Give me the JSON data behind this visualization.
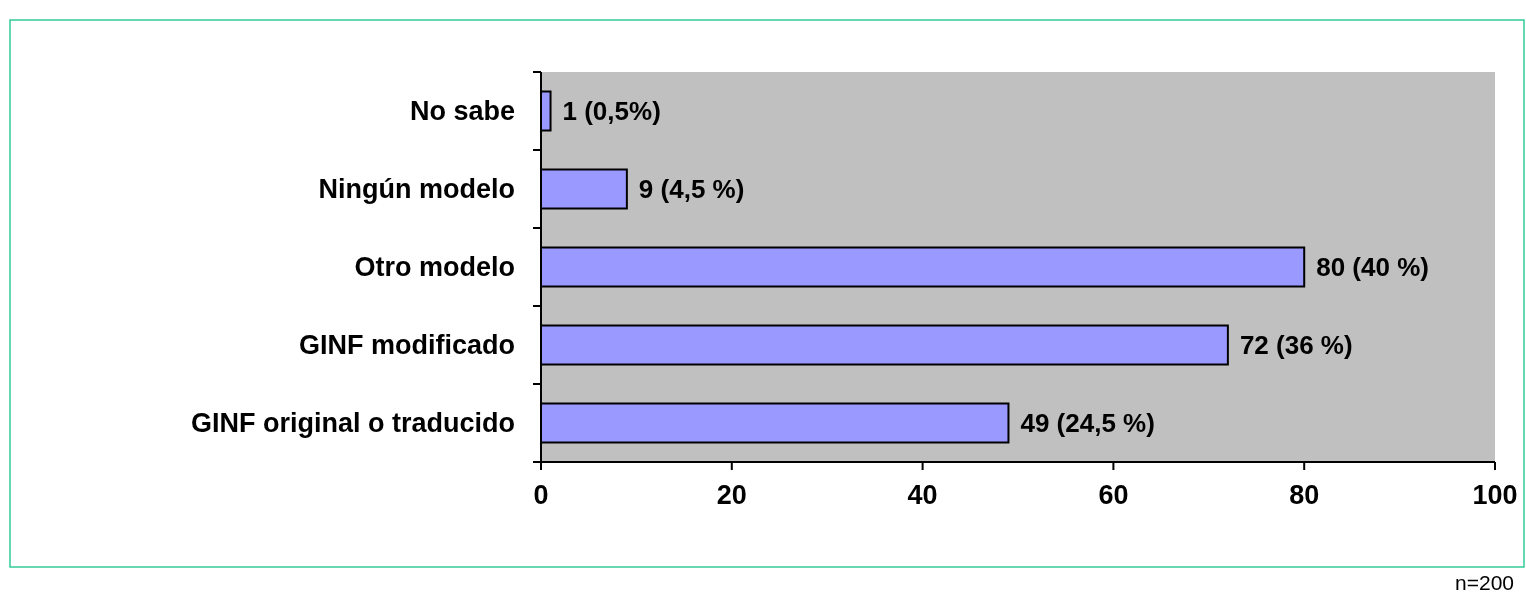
{
  "chart_data": {
    "type": "bar",
    "orientation": "horizontal",
    "categories": [
      "No sabe",
      "Ningún modelo",
      "Otro modelo",
      "GINF modificado",
      "GINF original o traducido"
    ],
    "values": [
      1,
      9,
      80,
      72,
      49
    ],
    "value_labels": [
      "1 (0,5%)",
      "9 (4,5 %)",
      "80 (40 %)",
      "72 (36 %)",
      "49 (24,5 %)"
    ],
    "color": "#9999ff",
    "xlim": [
      0,
      100
    ],
    "xticks": [
      0,
      20,
      40,
      60,
      80,
      100
    ],
    "grid": false,
    "annotations": [
      "n=200"
    ]
  }
}
